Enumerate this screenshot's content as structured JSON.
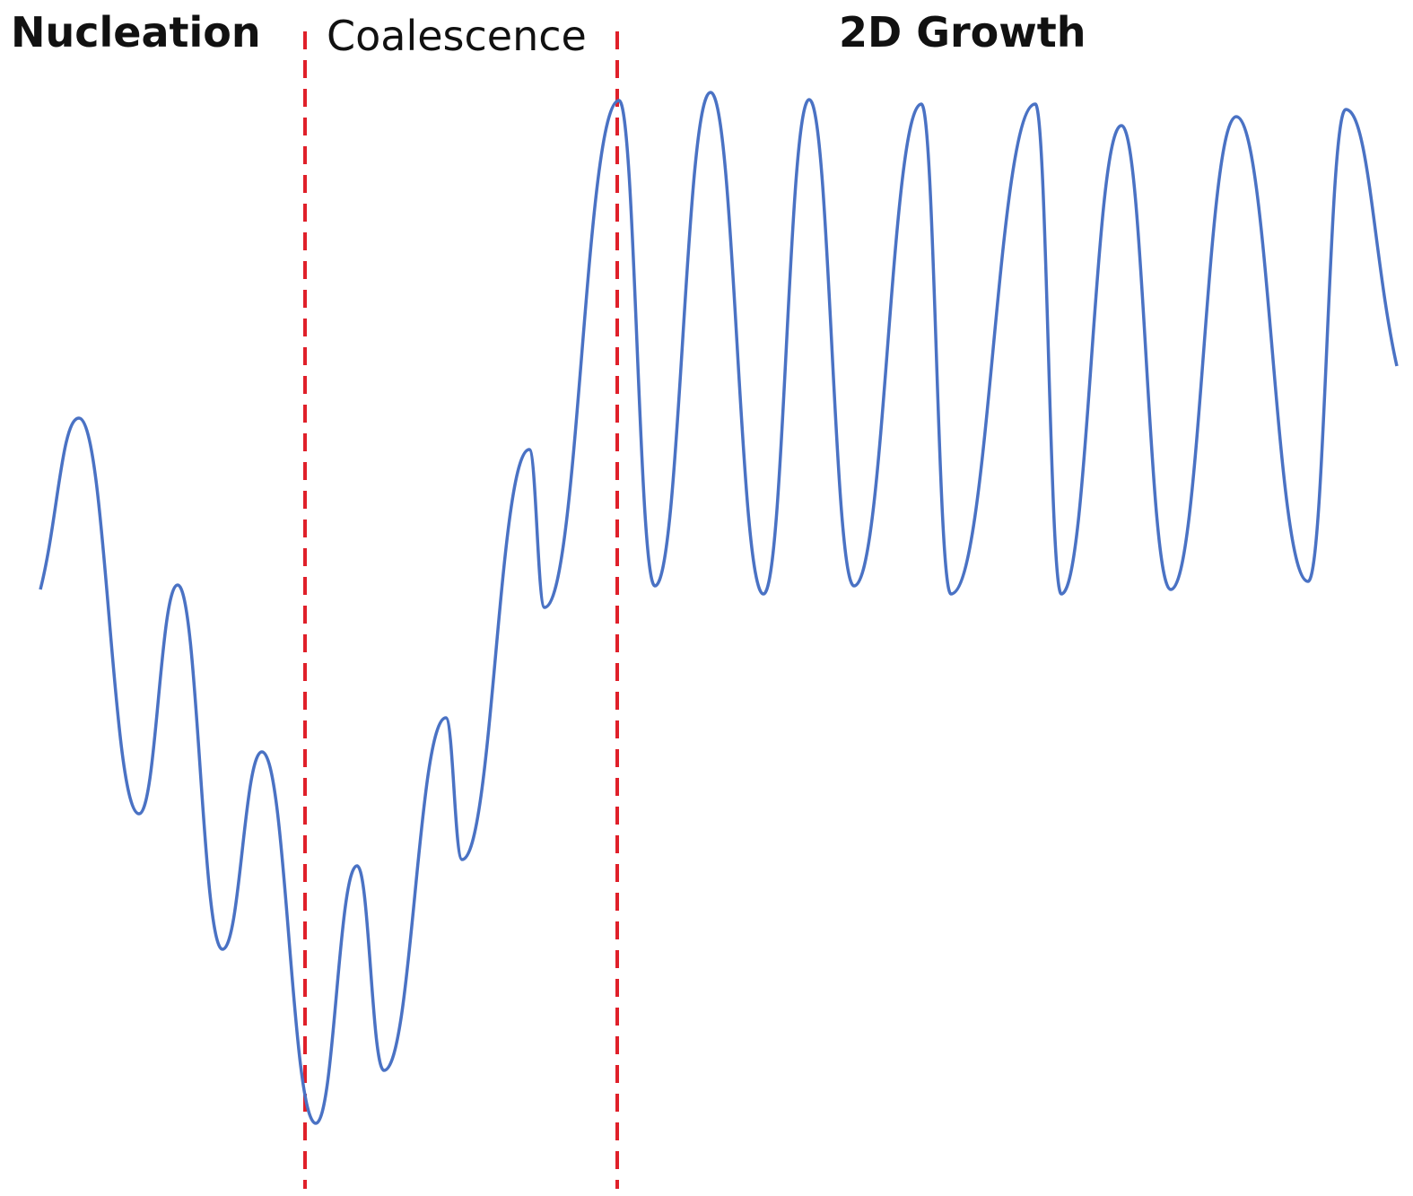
{
  "labels": {
    "nucleation": "Nucleation",
    "coalescence": "Coalescence",
    "growth": "2D Growth"
  }
}
